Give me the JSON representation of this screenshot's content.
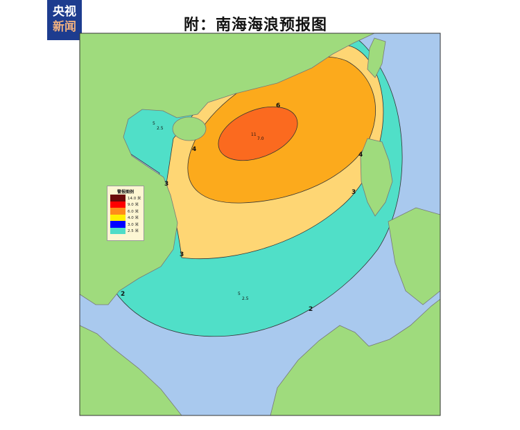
{
  "logo": {
    "line1": "央视",
    "line2": "新闻"
  },
  "title": "附：南海海浪预报图",
  "legend": {
    "title": "警报图例",
    "items": [
      {
        "label": "14.0 米",
        "color": "#6b0a0a"
      },
      {
        "label": "9.0 米",
        "color": "#ff0000"
      },
      {
        "label": "6.0 米",
        "color": "#ff8c1a"
      },
      {
        "label": "4.0 米",
        "color": "#ffee00"
      },
      {
        "label": "3.0 米",
        "color": "#0000ff"
      },
      {
        "label": "2.5 米",
        "color": "#4fdcc8"
      }
    ]
  },
  "map": {
    "colors": {
      "sea": "#a9c9ee",
      "land": "#9fdb7d",
      "wave_2_5": "#50dfc8",
      "wave_3": "#fed674",
      "wave_4": "#fcaa1c",
      "wave_6": "#fb6a1f"
    },
    "contour_labels": {
      "c6": "6",
      "c4a": "4",
      "c4b": "4",
      "c3a": "3",
      "c3b": "3",
      "c3c": "3",
      "c2a": "2",
      "c2b": "2"
    },
    "station_labels": {
      "center_hi": "11",
      "center_val": "7.0",
      "gulf_hi": "5",
      "gulf_val": "2.5",
      "south_hi": "5",
      "south_val": "2.5"
    }
  }
}
